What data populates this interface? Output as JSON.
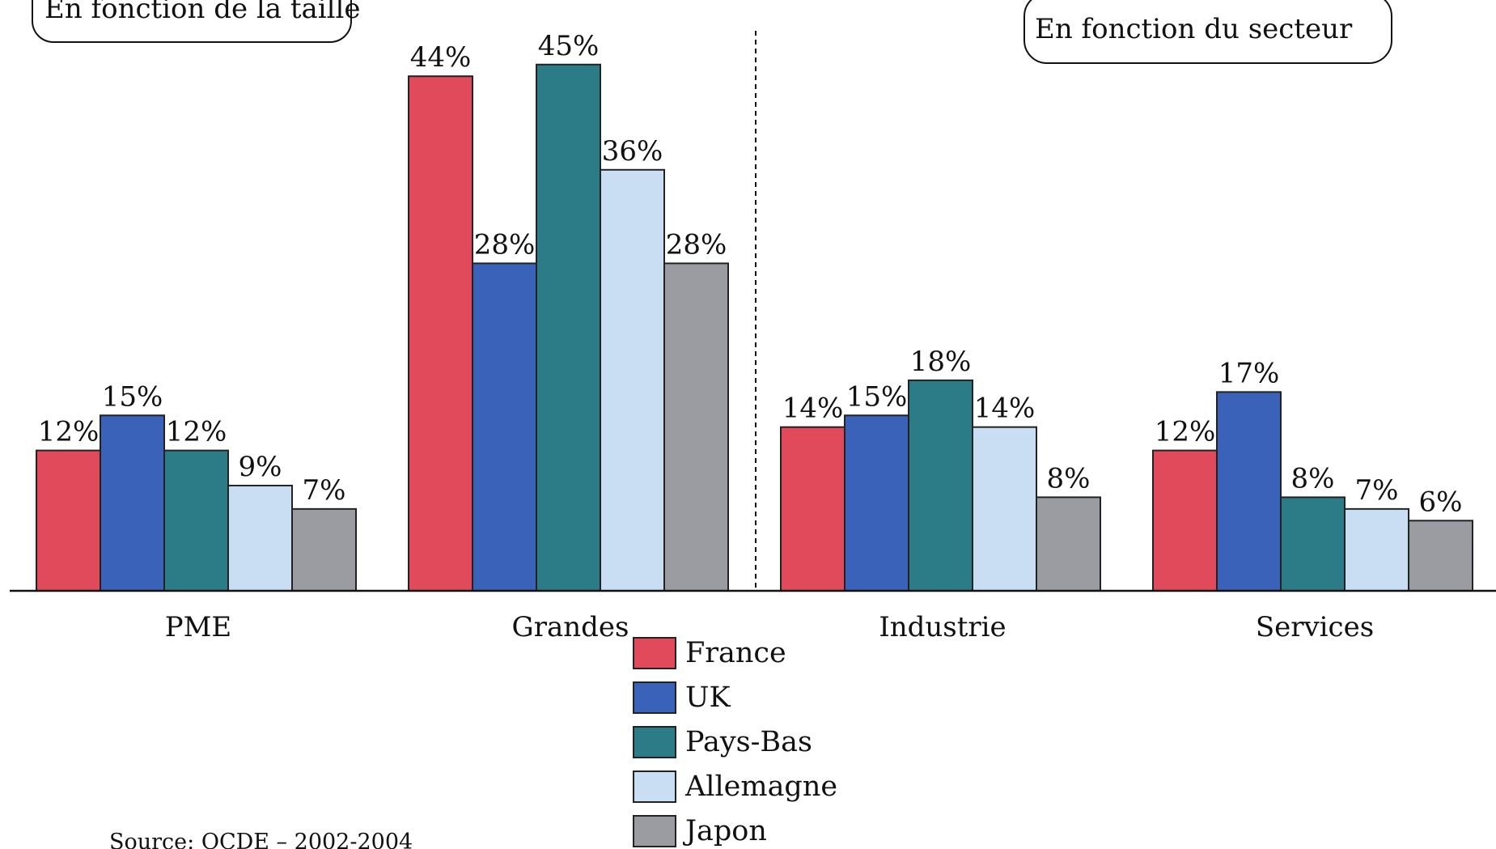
{
  "chart_data": {
    "type": "bar",
    "panels": [
      {
        "title": "En fonction de la taille",
        "categories": [
          "PME",
          "Grandes"
        ]
      },
      {
        "title": "En fonction du secteur",
        "categories": [
          "Industrie",
          "Services"
        ]
      }
    ],
    "categories": [
      "PME",
      "Grandes",
      "Industrie",
      "Services"
    ],
    "series": [
      {
        "name": "France",
        "color": "#e04a5a",
        "values": [
          12,
          44,
          14,
          12
        ]
      },
      {
        "name": "UK",
        "color": "#3a62b8",
        "values": [
          15,
          28,
          15,
          17
        ]
      },
      {
        "name": "Pays-Bas",
        "color": "#2b7c86",
        "values": [
          12,
          45,
          18,
          8
        ]
      },
      {
        "name": "Allemagne",
        "color": "#c9def3",
        "values": [
          9,
          36,
          14,
          7
        ]
      },
      {
        "name": "Japon",
        "color": "#9a9ca2",
        "values": [
          7,
          28,
          8,
          6
        ]
      }
    ],
    "value_suffix": "%",
    "ylim": [
      0,
      45
    ],
    "grid": false,
    "legend_position": "bottom-center",
    "source": "Source: OCDE – 2002-2004"
  }
}
